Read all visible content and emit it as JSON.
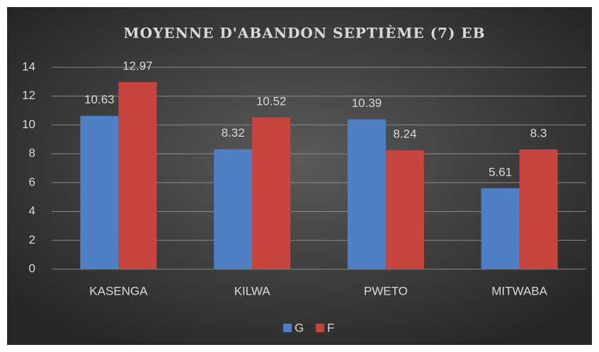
{
  "chart_data": {
    "type": "bar",
    "title": "MOYENNE D'ABANDON SEPTIÈME (7) EB",
    "categories": [
      "KASENGA",
      "KILWA",
      "PWETO",
      "MITWABA"
    ],
    "series": [
      {
        "name": "G",
        "color": "#4f7fc4",
        "values": [
          10.63,
          8.32,
          10.39,
          5.61
        ]
      },
      {
        "name": "F",
        "color": "#c8443f",
        "values": [
          12.97,
          10.52,
          8.24,
          8.3
        ]
      }
    ],
    "ylim": [
      0,
      14
    ],
    "yticks": [
      0,
      2,
      4,
      6,
      8,
      10,
      12,
      14
    ],
    "grid": true,
    "legend": "bottom"
  }
}
